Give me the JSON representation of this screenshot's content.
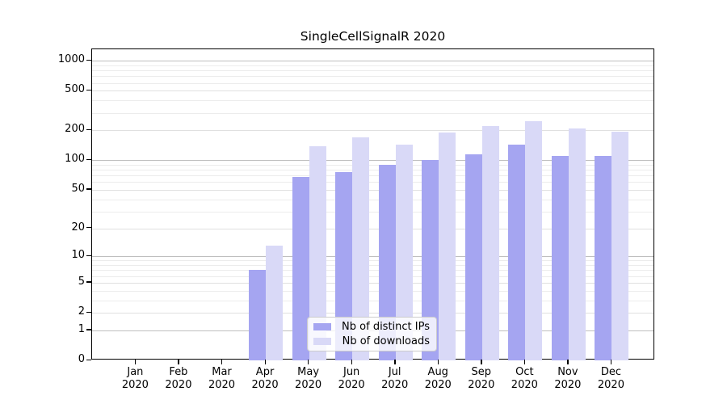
{
  "chart_data": {
    "type": "bar",
    "title": "SingleCellSignalR 2020",
    "x": [
      "Jan",
      "Feb",
      "Mar",
      "Apr",
      "May",
      "Jun",
      "Jul",
      "Aug",
      "Sep",
      "Oct",
      "Nov",
      "Dec"
    ],
    "x_year": "2020",
    "series": [
      {
        "name": "Nb of distinct IPs",
        "color": "#a5a5f1",
        "values": [
          0,
          0,
          0,
          7,
          68,
          76,
          90,
          100,
          115,
          143,
          110,
          110
        ]
      },
      {
        "name": "Nb of downloads",
        "color": "#d9d9f7",
        "values": [
          0,
          0,
          0,
          13,
          138,
          170,
          143,
          190,
          221,
          246,
          207,
          193
        ]
      }
    ],
    "yscale": "log1p",
    "ylim": [
      0,
      1300
    ],
    "yticks": [
      0,
      1,
      2,
      5,
      10,
      20,
      50,
      100,
      200,
      500,
      1000
    ],
    "major_gridline_ticks": [
      1,
      10,
      100,
      1000
    ],
    "grid": "on",
    "legend_position": "inside-bottom-center",
    "xlabel": "",
    "ylabel": ""
  },
  "colors": {
    "background": "#ffffff",
    "spine": "#000000",
    "grid_major": "#bfbfbf",
    "grid_minor": "#ececec",
    "bar_distinct_ips": "#a5a5f1",
    "bar_downloads": "#d9d9f7",
    "legend_border": "#cccccc"
  }
}
